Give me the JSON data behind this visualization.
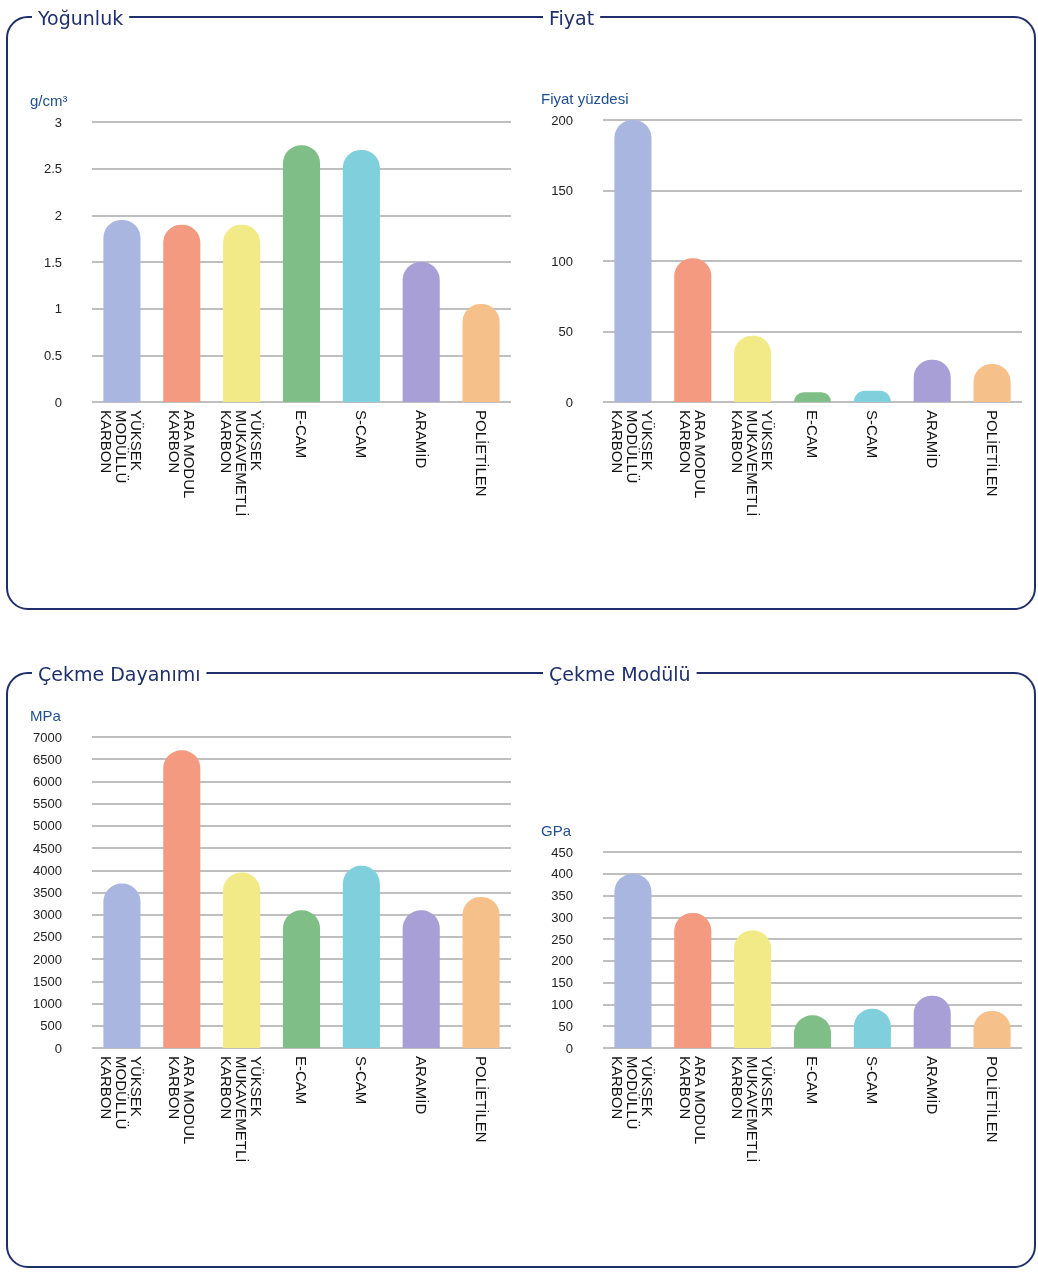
{
  "chart_data": [
    {
      "type": "bar",
      "title": "Yoğunluk",
      "ylabel": "g/cm³",
      "categories": [
        "YÜKSEK MODÜLLÜ KARBON",
        "ARA MODUL KARBON",
        "YÜKSEK MUKAVEMETLİ KARBON",
        "E-CAM",
        "S-CAM",
        "ARAMİD",
        "POLİETİLEN"
      ],
      "values": [
        1.95,
        1.9,
        1.9,
        2.75,
        2.7,
        1.5,
        1.05
      ],
      "colors": [
        "#a9b6e0",
        "#f39a80",
        "#f2ea86",
        "#7fbf87",
        "#7fcfdc",
        "#a79fd6",
        "#f5c08a"
      ],
      "ylim": [
        0,
        3
      ],
      "yticks": [
        0,
        0.5,
        1,
        1.5,
        2,
        2.5,
        3
      ],
      "grid": "y"
    },
    {
      "type": "bar",
      "title": "Fiyat",
      "ylabel": "Fiyat yüzdesi",
      "categories": [
        "YÜKSEK MODÜLLÜ KARBON",
        "ARA MODUL KARBON",
        "YÜKSEK MUKAVEMETLİ KARBON",
        "E-CAM",
        "S-CAM",
        "ARAMİD",
        "POLİETİLEN"
      ],
      "values": [
        200,
        102,
        47,
        7,
        8,
        30,
        27
      ],
      "colors": [
        "#a9b6e0",
        "#f39a80",
        "#f2ea86",
        "#7fbf87",
        "#7fcfdc",
        "#a79fd6",
        "#f5c08a"
      ],
      "ylim": [
        0,
        200
      ],
      "yticks": [
        0,
        50,
        100,
        150,
        200
      ],
      "grid": "y"
    },
    {
      "type": "bar",
      "title": "Çekme Dayanımı",
      "ylabel": "MPa",
      "categories": [
        "YÜKSEK MODÜLLÜ KARBON",
        "ARA MODUL KARBON",
        "YÜKSEK MUKAVEMETLİ KARBON",
        "E-CAM",
        "S-CAM",
        "ARAMİD",
        "POLİETİLEN"
      ],
      "values": [
        3700,
        6700,
        3950,
        3100,
        4100,
        3100,
        3400
      ],
      "colors": [
        "#a9b6e0",
        "#f39a80",
        "#f2ea86",
        "#7fbf87",
        "#7fcfdc",
        "#a79fd6",
        "#f5c08a"
      ],
      "ylim": [
        0,
        7000
      ],
      "yticks": [
        0,
        500,
        1000,
        1500,
        2000,
        2500,
        3000,
        3500,
        4000,
        4500,
        5000,
        5500,
        6000,
        6500,
        7000
      ],
      "grid": "y"
    },
    {
      "type": "bar",
      "title": "Çekme Modülü",
      "ylabel": "GPa",
      "categories": [
        "YÜKSEK MODÜLLÜ KARBON",
        "ARA MODUL KARBON",
        "YÜKSEK MUKAVEMETLİ KARBON",
        "E-CAM",
        "S-CAM",
        "ARAMİD",
        "POLİETİLEN"
      ],
      "values": [
        400,
        310,
        270,
        75,
        90,
        120,
        85
      ],
      "colors": [
        "#a9b6e0",
        "#f39a80",
        "#f2ea86",
        "#7fbf87",
        "#7fcfdc",
        "#a79fd6",
        "#f5c08a"
      ],
      "ylim": [
        0,
        450
      ],
      "yticks": [
        0,
        50,
        100,
        150,
        200,
        250,
        300,
        350,
        400,
        450
      ],
      "grid": "y"
    }
  ]
}
